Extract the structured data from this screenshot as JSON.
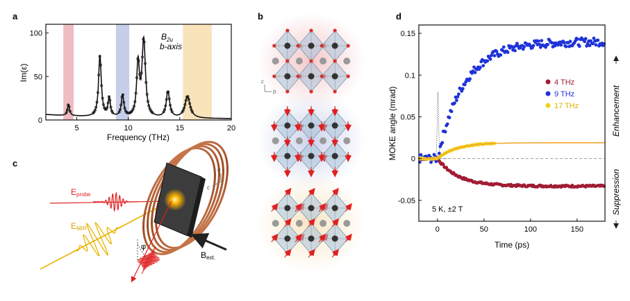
{
  "panel_labels": {
    "a": "a",
    "b": "b",
    "c": "c",
    "d": "d"
  },
  "panel_a": {
    "chart_data": {
      "type": "line",
      "xlabel": "Frequency (THz)",
      "ylabel": "Im(ε)",
      "xlim": [
        2,
        20
      ],
      "ylim": [
        0,
        110
      ],
      "xticks": [
        5,
        10,
        15,
        20
      ],
      "yticks": [
        0,
        50,
        100
      ],
      "xtick_labels": [
        "5",
        "10",
        "15",
        "20"
      ],
      "ytick_labels": [
        "0",
        "50",
        "100"
      ],
      "annotation_mode": "B",
      "annotation_sub": "2u",
      "annotation_axis": "b-axis",
      "bands": [
        {
          "from": 3.7,
          "to": 4.7,
          "color": "#e8a6ac"
        },
        {
          "from": 8.8,
          "to": 10.1,
          "color": "#b3bde0"
        },
        {
          "from": 15.3,
          "to": 18.1,
          "color": "#f5d9a4"
        }
      ],
      "peaks": [
        {
          "x": 4.2,
          "h": 13,
          "w": 0.12
        },
        {
          "x": 7.25,
          "h": 70,
          "w": 0.16
        },
        {
          "x": 8.15,
          "h": 21,
          "w": 0.14
        },
        {
          "x": 9.45,
          "h": 25,
          "w": 0.15
        },
        {
          "x": 10.95,
          "h": 60,
          "w": 0.16
        },
        {
          "x": 11.5,
          "h": 88,
          "w": 0.2
        },
        {
          "x": 13.85,
          "h": 30,
          "w": 0.2
        },
        {
          "x": 15.75,
          "h": 25,
          "w": 0.3
        }
      ],
      "baseline": 5
    }
  },
  "panel_b": {
    "axis_c": "c",
    "axis_b": "b",
    "modes": [
      {
        "glow": "#f3c3c6",
        "arrows": "#bbbbbb"
      },
      {
        "glow": "#c7cfe9",
        "arrows": "#d84040"
      },
      {
        "glow": "#f7e4c1",
        "arrows": "#d84040"
      }
    ]
  },
  "panel_c": {
    "e_probe": "E",
    "e_probe_sub": "probe",
    "e_mir": "E",
    "e_mir_sub": "MIR",
    "phi": "φ",
    "b_ext": "B",
    "b_ext_sub": "ext.",
    "axis_b": "b",
    "axis_c": "c"
  },
  "panel_d": {
    "chart_data": {
      "type": "scatter",
      "xlabel": "Time (ps)",
      "ylabel": "MOKE angle (mrad)",
      "xlim": [
        -20,
        180
      ],
      "ylim": [
        -0.075,
        0.16
      ],
      "xticks": [
        0,
        50,
        100,
        150
      ],
      "yticks": [
        -0.05,
        0,
        0.05,
        0.1,
        0.15
      ],
      "xtick_labels": [
        "0",
        "50",
        "100",
        "150"
      ],
      "ytick_labels": [
        "-0.05",
        "0",
        "0.05",
        "0.1",
        "0.15"
      ],
      "condition": "5 K, ±2 T",
      "right_label_top": "Enhancement",
      "right_label_bottom": "Suppression",
      "series": [
        {
          "name": "4 THz",
          "color": "#a01c33",
          "amp": -0.033,
          "tau": 22,
          "t_end": 180,
          "fit": false
        },
        {
          "name": "9 THz",
          "color": "#1f33d8",
          "amp": 0.14,
          "tau": 28,
          "t_end": 180,
          "fit": false
        },
        {
          "name": "17 THz",
          "color": "#f2d21c",
          "amp": 0.019,
          "tau": 20,
          "t_end": 62,
          "fit": true,
          "fit_color": "#f0a830"
        }
      ]
    }
  }
}
